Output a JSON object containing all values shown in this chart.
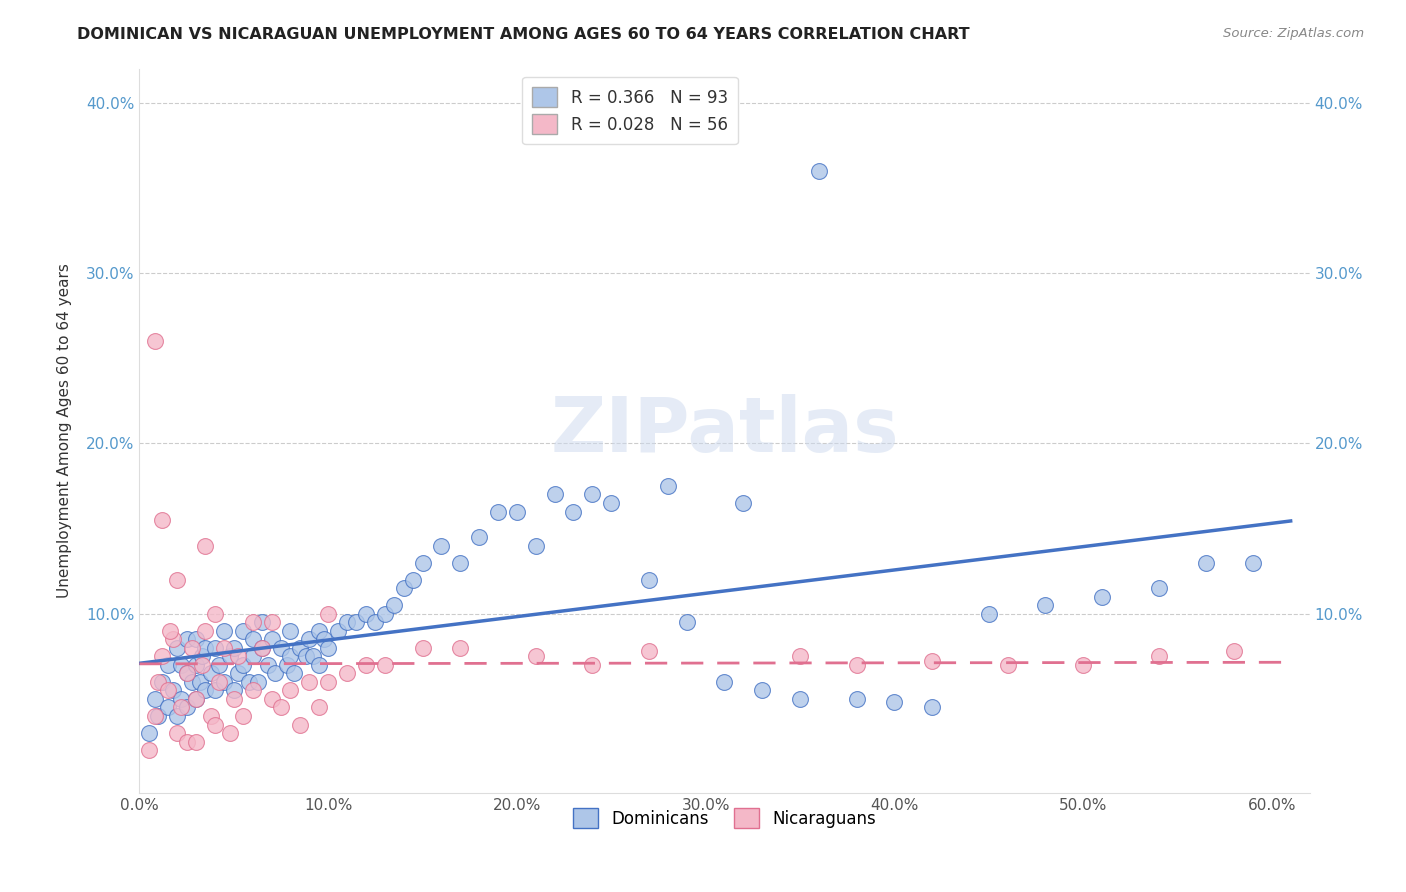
{
  "title": "DOMINICAN VS NICARAGUAN UNEMPLOYMENT AMONG AGES 60 TO 64 YEARS CORRELATION CHART",
  "source": "Source: ZipAtlas.com",
  "ylabel": "Unemployment Among Ages 60 to 64 years",
  "xlim": [
    0.0,
    0.62
  ],
  "ylim": [
    -0.005,
    0.42
  ],
  "xticks": [
    0.0,
    0.1,
    0.2,
    0.3,
    0.4,
    0.5,
    0.6
  ],
  "yticks": [
    0.0,
    0.1,
    0.2,
    0.3,
    0.4
  ],
  "ytick_labels": [
    "",
    "10.0%",
    "20.0%",
    "30.0%",
    "40.0%"
  ],
  "xtick_labels": [
    "0.0%",
    "10.0%",
    "20.0%",
    "30.0%",
    "40.0%",
    "50.0%",
    "60.0%"
  ],
  "dominican_R": 0.366,
  "dominican_N": 93,
  "nicaraguan_R": 0.028,
  "nicaraguan_N": 56,
  "dominican_color": "#aec6e8",
  "dominican_line_color": "#4472c4",
  "nicaraguan_color": "#f4b8c8",
  "nicaraguan_line_color": "#e07090",
  "watermark_text": "ZIPatlas",
  "dominican_x": [
    0.005,
    0.008,
    0.01,
    0.012,
    0.015,
    0.015,
    0.018,
    0.02,
    0.02,
    0.022,
    0.022,
    0.025,
    0.025,
    0.025,
    0.028,
    0.03,
    0.03,
    0.03,
    0.032,
    0.033,
    0.035,
    0.035,
    0.038,
    0.04,
    0.04,
    0.042,
    0.045,
    0.045,
    0.048,
    0.05,
    0.05,
    0.052,
    0.055,
    0.055,
    0.058,
    0.06,
    0.06,
    0.063,
    0.065,
    0.065,
    0.068,
    0.07,
    0.072,
    0.075,
    0.078,
    0.08,
    0.08,
    0.082,
    0.085,
    0.088,
    0.09,
    0.092,
    0.095,
    0.095,
    0.098,
    0.1,
    0.105,
    0.11,
    0.115,
    0.12,
    0.125,
    0.13,
    0.135,
    0.14,
    0.145,
    0.15,
    0.16,
    0.17,
    0.18,
    0.19,
    0.2,
    0.21,
    0.22,
    0.23,
    0.24,
    0.25,
    0.27,
    0.29,
    0.31,
    0.33,
    0.35,
    0.38,
    0.4,
    0.42,
    0.45,
    0.48,
    0.51,
    0.54,
    0.565,
    0.59,
    0.32,
    0.36,
    0.28
  ],
  "dominican_y": [
    0.03,
    0.05,
    0.04,
    0.06,
    0.045,
    0.07,
    0.055,
    0.04,
    0.08,
    0.05,
    0.07,
    0.045,
    0.065,
    0.085,
    0.06,
    0.05,
    0.07,
    0.085,
    0.06,
    0.075,
    0.055,
    0.08,
    0.065,
    0.055,
    0.08,
    0.07,
    0.06,
    0.09,
    0.075,
    0.055,
    0.08,
    0.065,
    0.07,
    0.09,
    0.06,
    0.075,
    0.085,
    0.06,
    0.08,
    0.095,
    0.07,
    0.085,
    0.065,
    0.08,
    0.07,
    0.075,
    0.09,
    0.065,
    0.08,
    0.075,
    0.085,
    0.075,
    0.09,
    0.07,
    0.085,
    0.08,
    0.09,
    0.095,
    0.095,
    0.1,
    0.095,
    0.1,
    0.105,
    0.115,
    0.12,
    0.13,
    0.14,
    0.13,
    0.145,
    0.16,
    0.16,
    0.14,
    0.17,
    0.16,
    0.17,
    0.165,
    0.12,
    0.095,
    0.06,
    0.055,
    0.05,
    0.05,
    0.048,
    0.045,
    0.1,
    0.105,
    0.11,
    0.115,
    0.13,
    0.13,
    0.165,
    0.36,
    0.175
  ],
  "nicaraguan_x": [
    0.005,
    0.008,
    0.01,
    0.012,
    0.015,
    0.018,
    0.02,
    0.022,
    0.025,
    0.025,
    0.028,
    0.03,
    0.03,
    0.033,
    0.035,
    0.038,
    0.04,
    0.042,
    0.045,
    0.048,
    0.05,
    0.052,
    0.055,
    0.06,
    0.065,
    0.07,
    0.075,
    0.08,
    0.085,
    0.09,
    0.095,
    0.1,
    0.11,
    0.12,
    0.13,
    0.15,
    0.17,
    0.21,
    0.24,
    0.27,
    0.35,
    0.38,
    0.42,
    0.46,
    0.5,
    0.54,
    0.58,
    0.02,
    0.035,
    0.06,
    0.008,
    0.012,
    0.016,
    0.04,
    0.07,
    0.1
  ],
  "nicaraguan_y": [
    0.02,
    0.04,
    0.06,
    0.075,
    0.055,
    0.085,
    0.03,
    0.045,
    0.025,
    0.065,
    0.08,
    0.025,
    0.05,
    0.07,
    0.09,
    0.04,
    0.035,
    0.06,
    0.08,
    0.03,
    0.05,
    0.075,
    0.04,
    0.055,
    0.08,
    0.05,
    0.045,
    0.055,
    0.035,
    0.06,
    0.045,
    0.06,
    0.065,
    0.07,
    0.07,
    0.08,
    0.08,
    0.075,
    0.07,
    0.078,
    0.075,
    0.07,
    0.072,
    0.07,
    0.07,
    0.075,
    0.078,
    0.12,
    0.14,
    0.095,
    0.26,
    0.155,
    0.09,
    0.1,
    0.095,
    0.1
  ]
}
